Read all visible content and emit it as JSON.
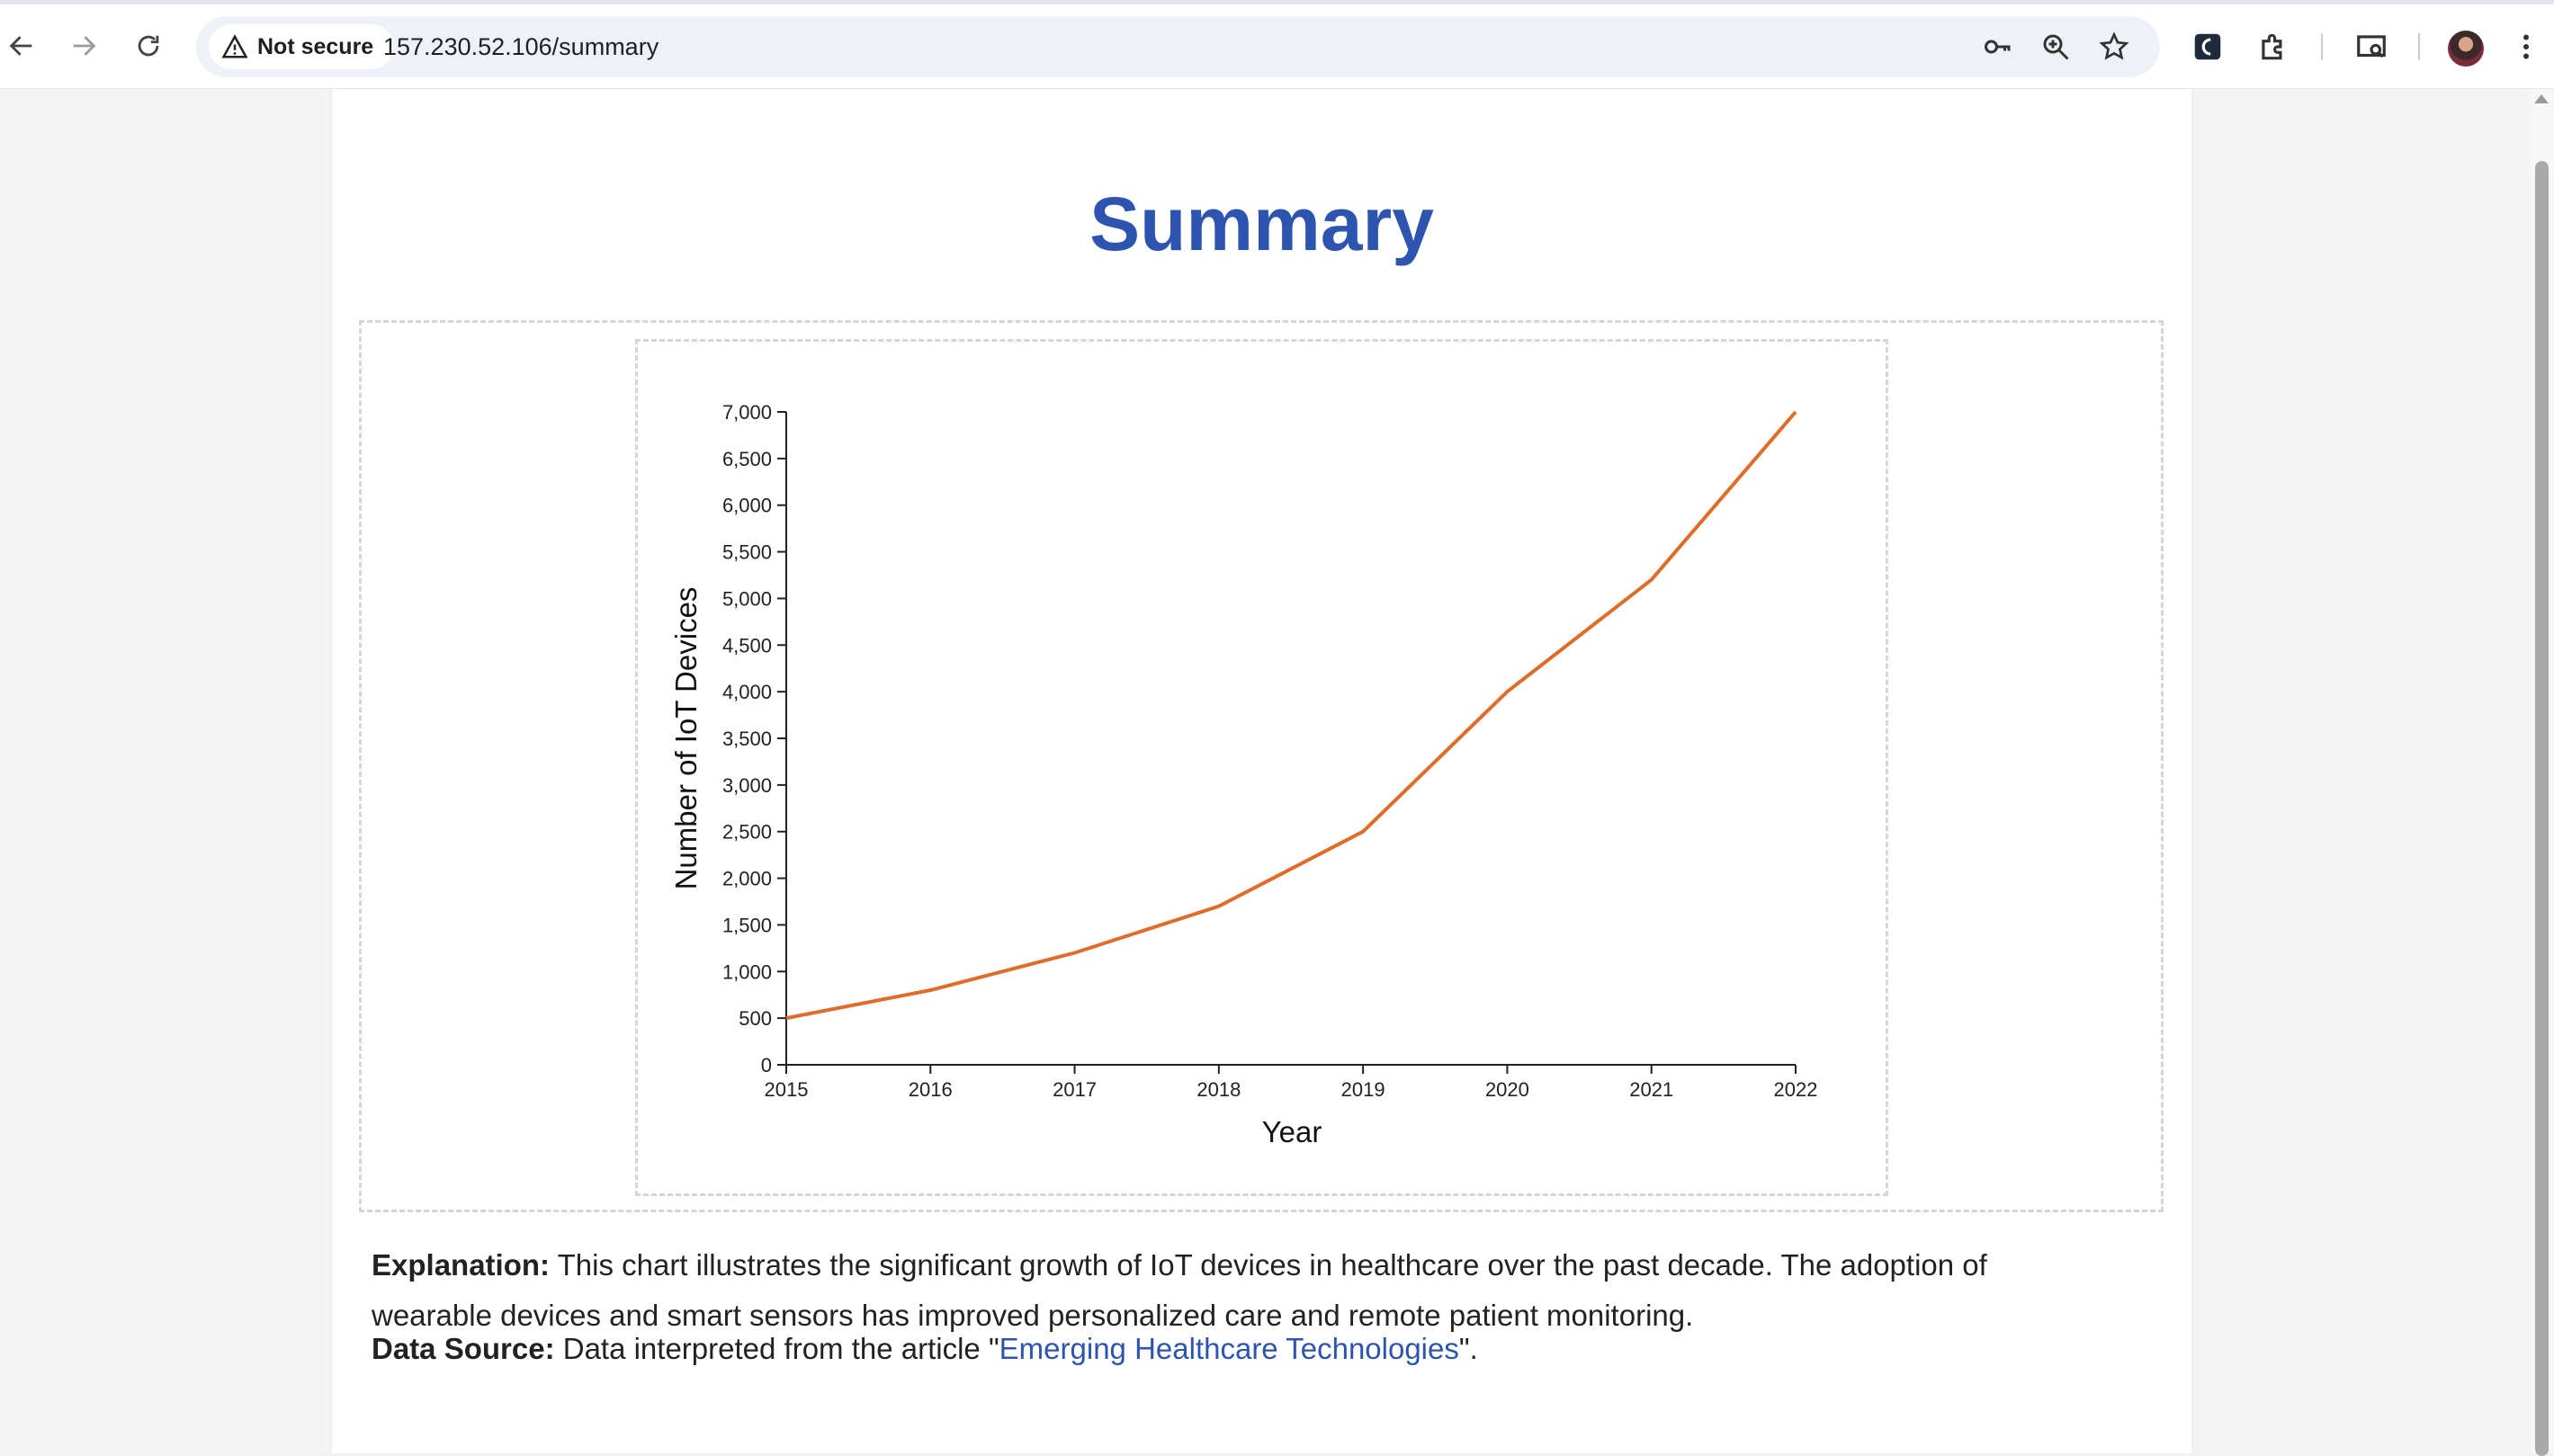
{
  "browser": {
    "security_label": "Not secure",
    "url": "157.230.52.106/summary"
  },
  "page": {
    "title": "Summary",
    "explanation_label": "Explanation:",
    "explanation_text": " This chart illustrates the significant growth of IoT devices in healthcare over the past decade. The adoption of",
    "explanation_text_2": "wearable devices and smart sensors has improved personalized care and remote patient monitoring.",
    "source_label": "Data Source:",
    "source_prefix": " Data interpreted from the article \"",
    "source_link": "Emerging Healthcare Technologies",
    "source_suffix": "\"."
  },
  "chart_data": {
    "type": "line",
    "xlabel": "Year",
    "ylabel": "Number of IoT Devices",
    "x": [
      2015,
      2016,
      2017,
      2018,
      2019,
      2020,
      2021,
      2022
    ],
    "series": [
      {
        "values": [
          500,
          800,
          1200,
          1700,
          2500,
          4000,
          5200,
          7000
        ]
      }
    ],
    "ylim": [
      0,
      7000
    ],
    "y_ticks": [
      "0",
      "500",
      "1,000",
      "1,500",
      "2,000",
      "2,500",
      "3,000",
      "3,500",
      "4,000",
      "4,500",
      "5,000",
      "5,500",
      "6,000",
      "6,500",
      "7,000"
    ],
    "x_ticks": [
      "2015",
      "2016",
      "2017",
      "2018",
      "2019",
      "2020",
      "2021",
      "2022"
    ],
    "line_color": "#e06c2a",
    "grid": false,
    "legend": "none"
  }
}
